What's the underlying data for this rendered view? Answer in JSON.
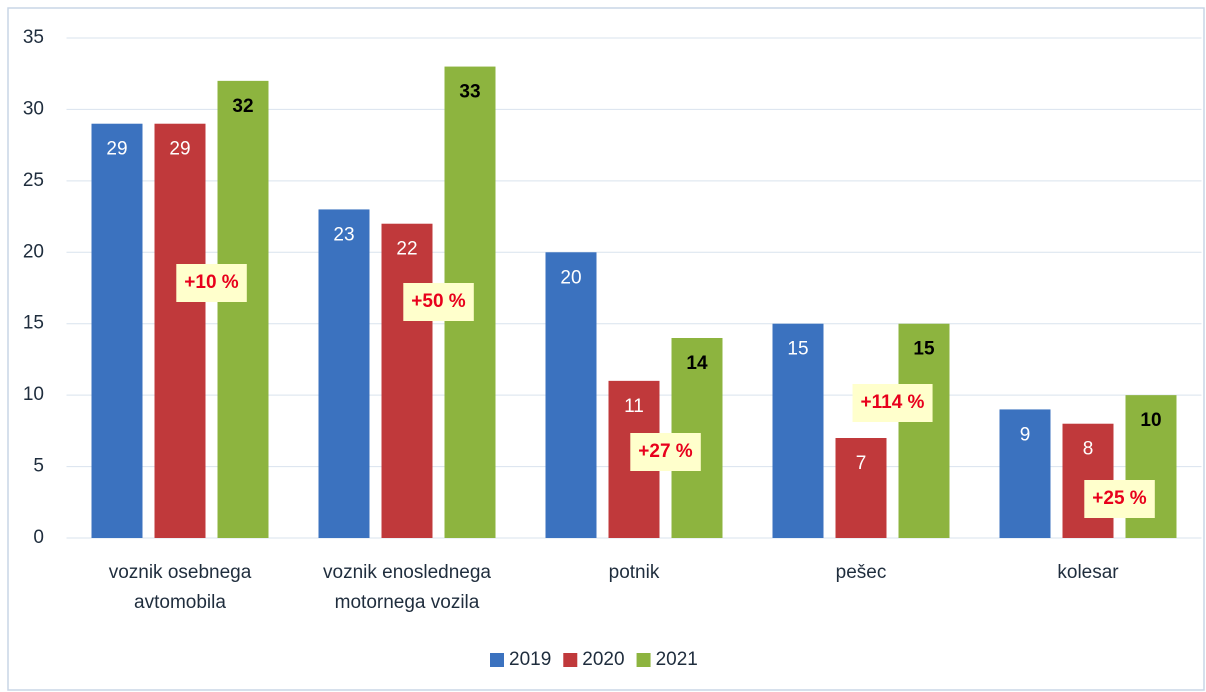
{
  "chart_data": {
    "type": "bar",
    "categories": [
      "voznik osebnega avtomobila",
      "voznik enoslednega motornega vozila",
      "potnik",
      "pešec",
      "kolesar"
    ],
    "series": [
      {
        "name": "2019",
        "color": "#3b72bf",
        "values": [
          29,
          23,
          20,
          15,
          9
        ]
      },
      {
        "name": "2020",
        "color": "#c0393b",
        "values": [
          29,
          22,
          11,
          7,
          8
        ]
      },
      {
        "name": "2021",
        "color": "#8db43f",
        "values": [
          32,
          33,
          14,
          15,
          10
        ]
      }
    ],
    "annotations": [
      "+10 %",
      "+50 %",
      "+27 %",
      "+114 %",
      "+25 %"
    ],
    "ylim": [
      0,
      35
    ],
    "yticks": [
      0,
      5,
      10,
      15,
      20,
      25,
      30,
      35
    ],
    "grid": true,
    "legend": "bottom"
  }
}
